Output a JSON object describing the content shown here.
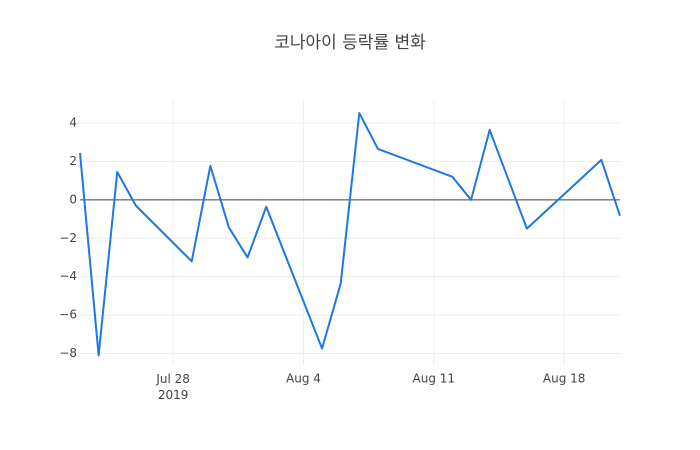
{
  "chart_data": {
    "type": "line",
    "title": "코나아이 등락률 변화",
    "x": [
      "2019-07-23",
      "2019-07-24",
      "2019-07-25",
      "2019-07-26",
      "2019-07-29",
      "2019-07-30",
      "2019-07-31",
      "2019-08-01",
      "2019-08-02",
      "2019-08-05",
      "2019-08-06",
      "2019-08-07",
      "2019-08-08",
      "2019-08-12",
      "2019-08-13",
      "2019-08-14",
      "2019-08-16",
      "2019-08-20",
      "2019-08-21"
    ],
    "values": [
      2.44,
      -8.1,
      1.45,
      -0.3,
      -3.2,
      1.77,
      -1.45,
      -3.0,
      -0.36,
      -7.74,
      -4.36,
      4.52,
      2.65,
      1.2,
      0,
      3.64,
      -1.5,
      2.08,
      -0.83
    ],
    "color": "#1f77e0",
    "xlim": [
      "2019-07-23",
      "2019-08-21"
    ],
    "xticks": [
      {
        "value": "2019-07-28",
        "label": "Jul 28\n2019"
      },
      {
        "value": "2019-08-04",
        "label": "Aug 4"
      },
      {
        "value": "2019-08-11",
        "label": "Aug 11"
      },
      {
        "value": "2019-08-18",
        "label": "Aug 18"
      }
    ],
    "ylim": [
      -8.6,
      5.2
    ],
    "yticks": [
      {
        "value": -8,
        "label": "−8"
      },
      {
        "value": -6,
        "label": "−6"
      },
      {
        "value": -4,
        "label": "−4"
      },
      {
        "value": -2,
        "label": "−2"
      },
      0,
      2,
      4
    ],
    "grid": true,
    "zeroline": true
  }
}
